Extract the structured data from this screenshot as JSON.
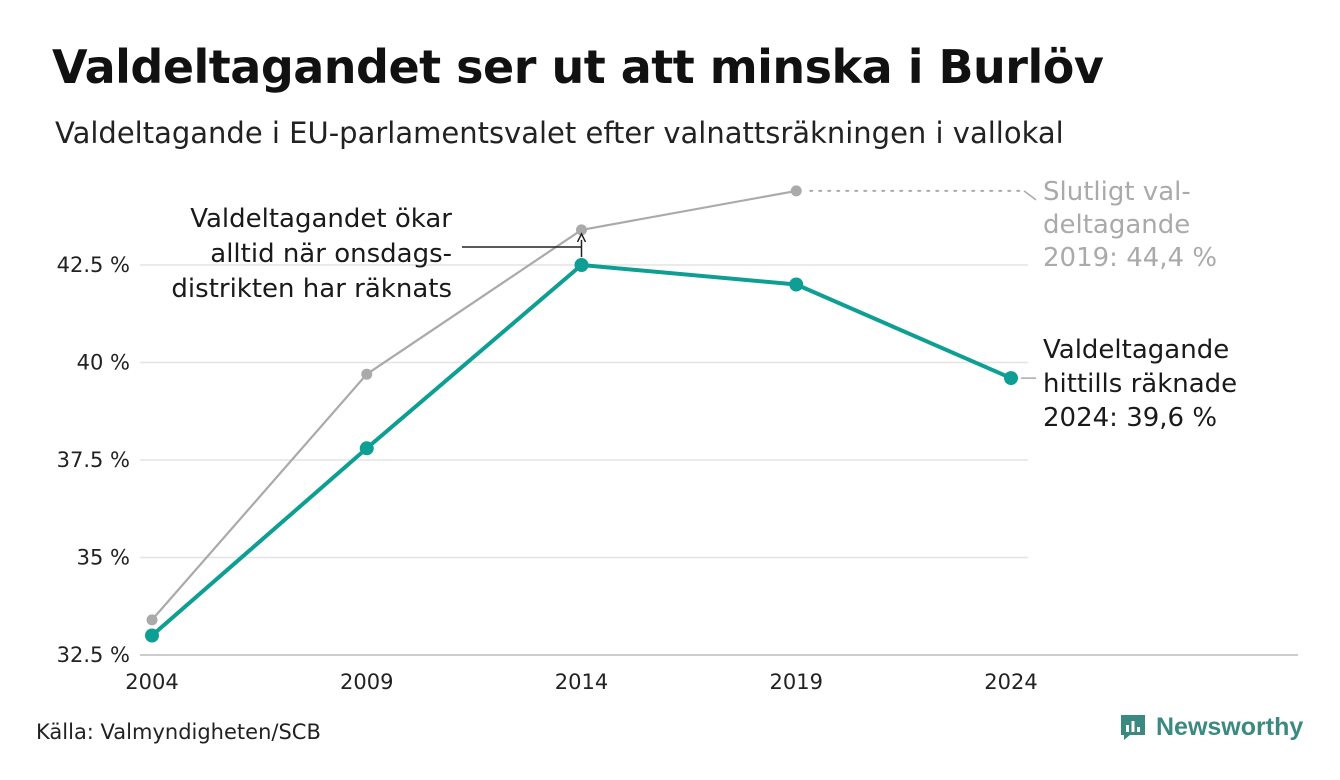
{
  "title": "Valdeltagandet ser ut att minska i Burlöv",
  "subtitle": "Valdeltagande i EU-parlamentsvalet efter valnattsräkningen i vallokal",
  "source": "Källa: Valmyndigheten/SCB",
  "brand": "Newsworthy",
  "chart_data": {
    "type": "line",
    "x": [
      2004,
      2009,
      2014,
      2019,
      2024
    ],
    "ylim": [
      32.5,
      45
    ],
    "yticks": [
      32.5,
      35,
      37.5,
      40,
      42.5
    ],
    "ytick_labels": [
      "32.5 %",
      "35 %",
      "37.5 %",
      "40 %",
      "42.5 %"
    ],
    "xtick_labels": [
      "2004",
      "2009",
      "2014",
      "2019",
      "2024"
    ],
    "grid": true,
    "series": [
      {
        "values": [
          33.4,
          39.7,
          43.4,
          44.4,
          null
        ],
        "color": "#aaaaaa"
      },
      {
        "values": [
          33.0,
          37.8,
          42.5,
          42.0,
          39.6
        ],
        "color": "#0e9e94"
      }
    ],
    "annotations": {
      "left": [
        "Valdeltagandet ökar",
        "alltid när onsdags-",
        "distrikten har räknats"
      ],
      "final": [
        "Slutligt val-",
        "deltagande",
        "2019: 44,4 %"
      ],
      "current": [
        "Valdeltagande",
        "hittills räknade",
        "2024: 39,6 %"
      ]
    }
  }
}
